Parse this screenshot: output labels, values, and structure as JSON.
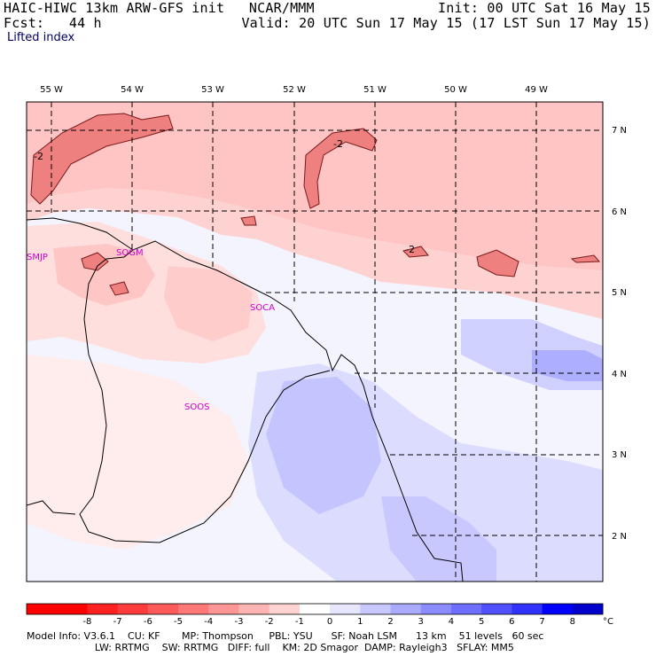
{
  "header": {
    "model_line": "HAIC-HIWC 13km ARW-GFS init   NCAR/MMM",
    "init": "Init: 00 UTC Sat 16 May 15",
    "fcst_label": "Fcst:   44 h",
    "valid": "Valid: 20 UTC Sun 17 May 15 (17 LST Sun 17 May 15)",
    "field": "Lifted index"
  },
  "map": {
    "lon_labels": [
      "55 W",
      "54 W",
      "53 W",
      "52 W",
      "51 W",
      "50 W",
      "49 W"
    ],
    "lat_labels": [
      "7 N",
      "6 N",
      "5 N",
      "4 N",
      "3 N",
      "2 N"
    ],
    "contour_label": "-2",
    "stations": [
      {
        "id": "SMJP"
      },
      {
        "id": "SOGM"
      },
      {
        "id": "SOCA"
      },
      {
        "id": "SOOS"
      }
    ],
    "colors": {
      "station": "#cc00cc",
      "contour": "#7a1a1a"
    }
  },
  "colorbar": {
    "labels": [
      "-8",
      "-7",
      "-6",
      "-5",
      "-4",
      "-3",
      "-2",
      "-1",
      "0",
      "1",
      "2",
      "3",
      "4",
      "5",
      "6",
      "7",
      "8"
    ],
    "unit": "°C",
    "colors": [
      "#ff0000",
      "#ff2020",
      "#ff3c3c",
      "#ff5a5a",
      "#ff7878",
      "#ff9696",
      "#ffb4b4",
      "#ffd2d2",
      "#ffffff",
      "#e6e6ff",
      "#c8c8ff",
      "#aaaaff",
      "#8c8cff",
      "#6e6eff",
      "#5050ff",
      "#3232ff",
      "#0000ff"
    ]
  },
  "footer": {
    "line1": "Model Info: V3.6.1    CU: KF       MP: Thompson     PBL: YSU      SF: Noah LSM      13 km    51 levels   60 sec",
    "line2": "                      LW: RRTMG    SW: RRTMG   DIFF: full    KM: 2D Smagor  DAMP: Rayleigh3   SFLAY: MM5"
  }
}
